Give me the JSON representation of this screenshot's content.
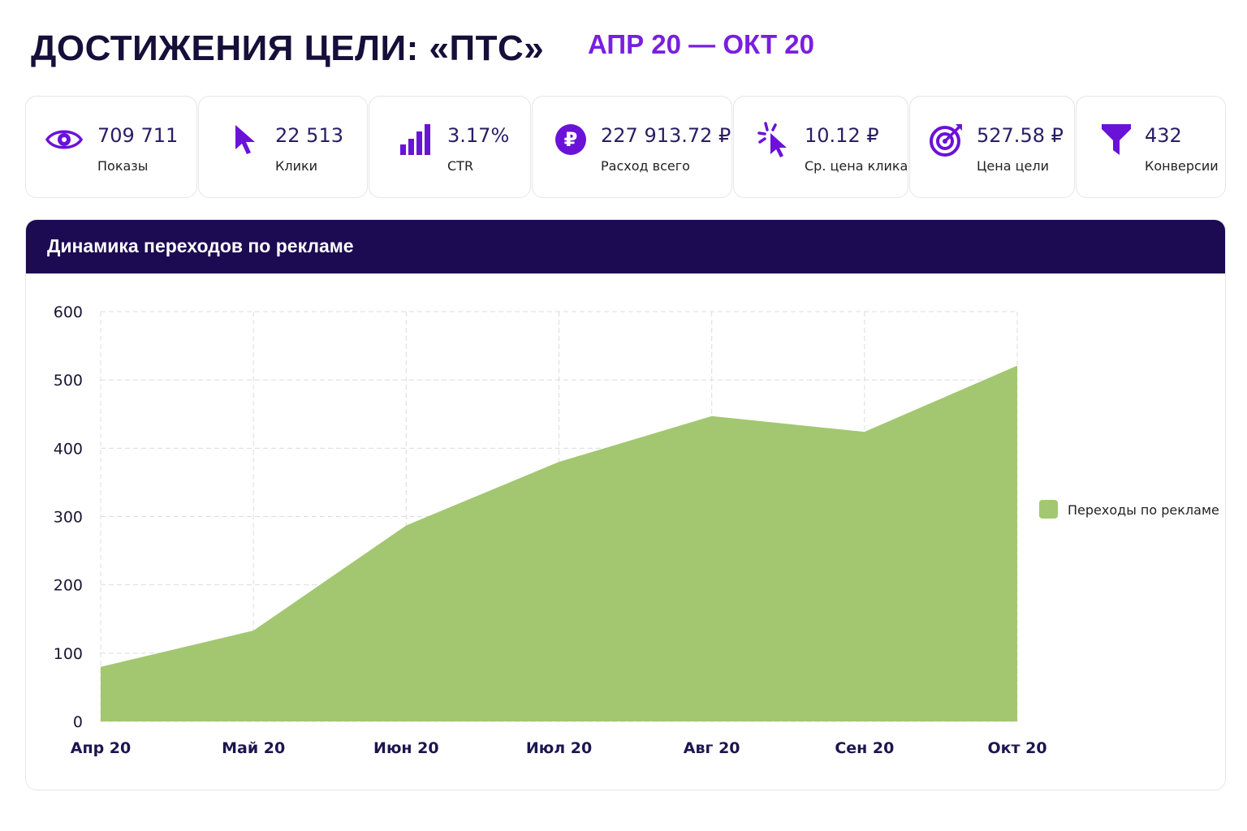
{
  "header": {
    "title": "ДОСТИЖЕНИЯ ЦЕЛИ: «ПТС»",
    "period": "АПР 20 — ОКТ 20"
  },
  "kpis": [
    {
      "value": "709 711",
      "label": "Показы",
      "icon": "eye-icon"
    },
    {
      "value": "22 513",
      "label": "Клики",
      "icon": "cursor-icon"
    },
    {
      "value": "3.17%",
      "label": "CTR",
      "icon": "bar-chart-icon"
    },
    {
      "value": "227 913.72 ₽",
      "label": "Расход всего",
      "icon": "ruble-coin-icon"
    },
    {
      "value": "10.12 ₽",
      "label": "Ср. цена клика",
      "icon": "click-icon"
    },
    {
      "value": "527.58 ₽",
      "label": "Цена цели",
      "icon": "target-icon"
    },
    {
      "value": "432",
      "label": "Конверсии",
      "icon": "funnel-icon"
    }
  ],
  "colors": {
    "accent": "#7a1ee0",
    "header_bg": "#1c0a52",
    "area": "#a3c771"
  },
  "chart_title": "Динамика переходов по рекламе",
  "chart_data": {
    "type": "area",
    "title": "Динамика переходов по рекламе",
    "categories": [
      "Апр 20",
      "Май 20",
      "Июн 20",
      "Июл 20",
      "Авг 20",
      "Сен 20",
      "Окт 20"
    ],
    "series": [
      {
        "name": "Переходы по рекламе",
        "values": [
          80,
          133,
          287,
          380,
          447,
          424,
          521
        ]
      }
    ],
    "ylim": [
      0,
      600
    ],
    "yticks": [
      "0",
      "100",
      "200",
      "300",
      "400",
      "500",
      "600"
    ],
    "grid": true,
    "legend": "right"
  }
}
